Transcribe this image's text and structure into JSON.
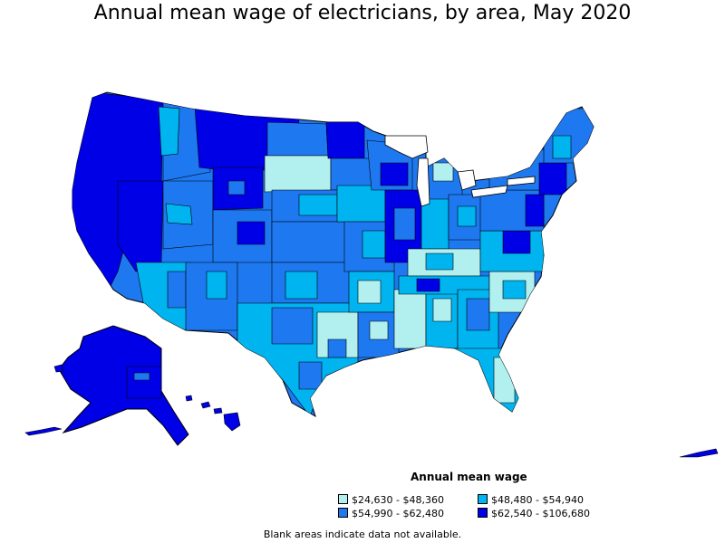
{
  "title": "Annual mean wage of electricians, by area, May 2020",
  "legend": {
    "title": "Annual mean wage",
    "items": [
      {
        "label": "$24,630 - $48,360",
        "color": "#b2f0f0"
      },
      {
        "label": "$48,480 - $54,940",
        "color": "#00b4f0"
      },
      {
        "label": "$54,990 - $62,480",
        "color": "#1e78f0"
      },
      {
        "label": "$62,540 - $106,680",
        "color": "#0000e6"
      }
    ]
  },
  "note": "Blank areas indicate data not available."
}
